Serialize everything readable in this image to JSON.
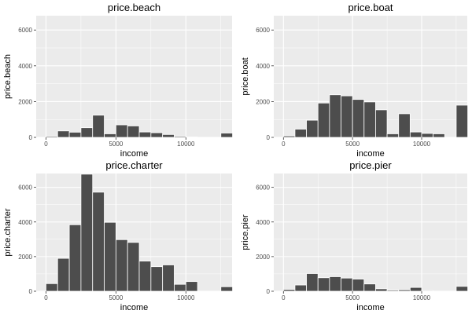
{
  "chart_data": [
    {
      "type": "bar",
      "title": "price.beach",
      "xlabel": "income",
      "ylabel": "price.beach",
      "xlim": [
        -700,
        13300
      ],
      "ylim": [
        0,
        6800
      ],
      "xticks": [
        0,
        5000,
        10000
      ],
      "yticks": [
        0,
        2000,
        4000,
        6000
      ],
      "bins": [
        0,
        833,
        1666,
        2500,
        3333,
        4166,
        5000,
        5833,
        6666,
        7500,
        8333,
        9166,
        10000,
        10833,
        11666,
        12500
      ],
      "values": [
        60,
        360,
        290,
        540,
        1240,
        200,
        700,
        640,
        300,
        260,
        160,
        60,
        20,
        0,
        0,
        240
      ]
    },
    {
      "type": "bar",
      "title": "price.boat",
      "xlabel": "income",
      "ylabel": "price.boat",
      "xlim": [
        -700,
        13300
      ],
      "ylim": [
        0,
        6800
      ],
      "xticks": [
        0,
        5000,
        10000
      ],
      "yticks": [
        0,
        2000,
        4000,
        6000
      ],
      "bins": [
        0,
        833,
        1666,
        2500,
        3333,
        4166,
        5000,
        5833,
        6666,
        7500,
        8333,
        9166,
        10000,
        10833,
        11666,
        12500
      ],
      "values": [
        80,
        460,
        960,
        1920,
        2380,
        2320,
        2120,
        1980,
        1540,
        200,
        1320,
        300,
        220,
        200,
        0,
        1800
      ]
    },
    {
      "type": "bar",
      "title": "price.charter",
      "xlabel": "income",
      "ylabel": "price.charter",
      "xlim": [
        -700,
        13300
      ],
      "ylim": [
        0,
        6800
      ],
      "xticks": [
        0,
        5000,
        10000
      ],
      "yticks": [
        0,
        2000,
        4000,
        6000
      ],
      "bins": [
        0,
        833,
        1666,
        2500,
        3333,
        4166,
        5000,
        5833,
        6666,
        7500,
        8333,
        9166,
        10000,
        10833,
        11666,
        12500
      ],
      "values": [
        440,
        1900,
        3840,
        6760,
        5720,
        3980,
        2980,
        2820,
        1740,
        1420,
        1520,
        400,
        560,
        0,
        0,
        260
      ]
    },
    {
      "type": "bar",
      "title": "price.pier",
      "xlabel": "income",
      "ylabel": "price.pier",
      "xlim": [
        -700,
        13300
      ],
      "ylim": [
        0,
        6800
      ],
      "xticks": [
        0,
        5000,
        10000
      ],
      "yticks": [
        0,
        2000,
        4000,
        6000
      ],
      "bins": [
        0,
        833,
        1666,
        2500,
        3333,
        4166,
        5000,
        5833,
        6666,
        7500,
        8333,
        9166,
        10000,
        10833,
        11666,
        12500
      ],
      "values": [
        100,
        360,
        1020,
        780,
        840,
        760,
        700,
        420,
        140,
        60,
        80,
        220,
        40,
        0,
        0,
        280
      ]
    }
  ]
}
